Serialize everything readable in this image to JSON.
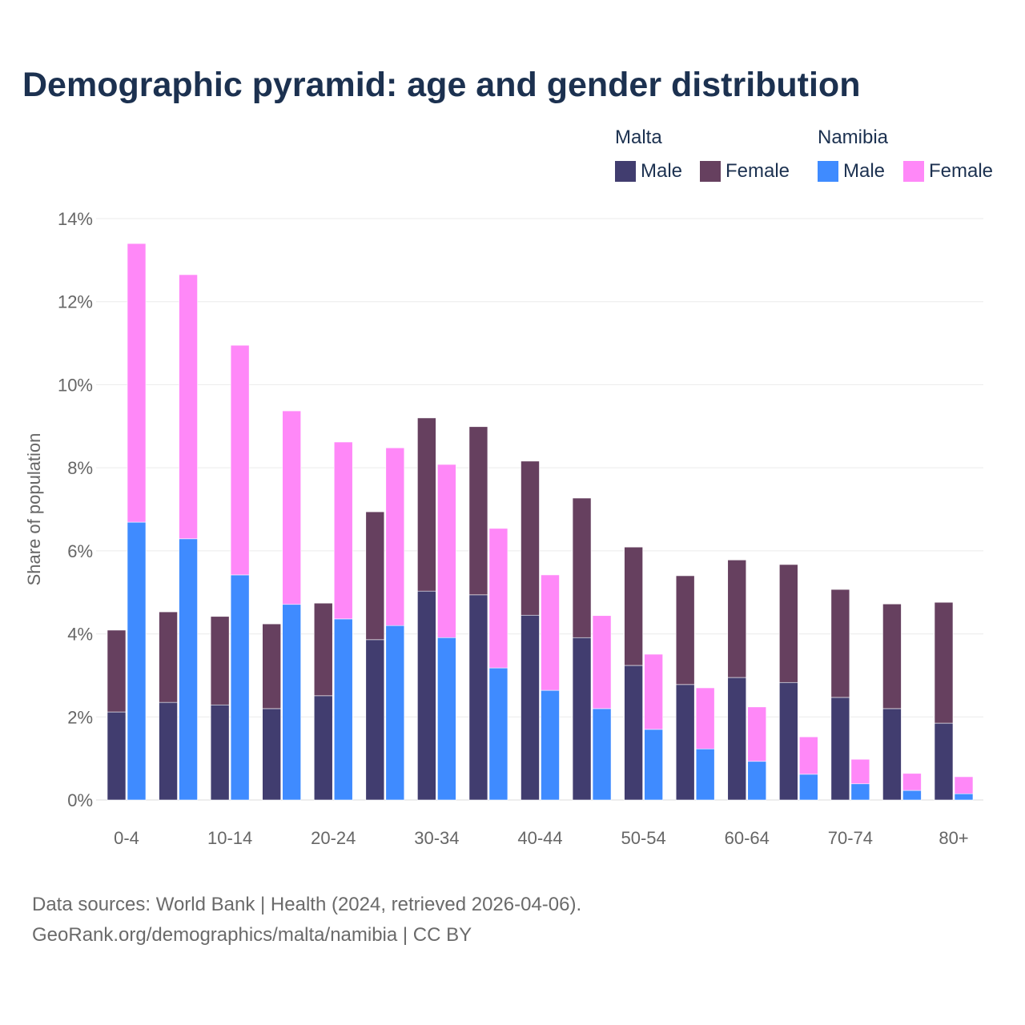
{
  "chart_data": {
    "type": "bar",
    "stacked": true,
    "title": "Demographic pyramid: age and gender distribution",
    "ylabel": "Share of population",
    "ylim": [
      0,
      14
    ],
    "yticks": [
      "0%",
      "2%",
      "4%",
      "6%",
      "8%",
      "10%",
      "12%",
      "14%"
    ],
    "ytick_values": [
      0,
      2,
      4,
      6,
      8,
      10,
      12,
      14
    ],
    "categories": [
      "0-4",
      "5-9",
      "10-14",
      "15-19",
      "20-24",
      "25-29",
      "30-34",
      "35-39",
      "40-44",
      "45-49",
      "50-54",
      "55-59",
      "60-64",
      "65-69",
      "70-74",
      "75-79",
      "80+"
    ],
    "xtick_labels": [
      "0-4",
      "10-14",
      "20-24",
      "30-34",
      "40-44",
      "50-54",
      "60-64",
      "70-74",
      "80+"
    ],
    "grid": true,
    "legend_placement": "top-right",
    "groups": [
      {
        "name": "Malta",
        "series": [
          {
            "name": "Male",
            "color": "#413d6f",
            "values": [
              2.12,
              2.35,
              2.29,
              2.2,
              2.51,
              3.86,
              5.03,
              4.94,
              4.45,
              3.91,
              3.24,
              2.78,
              2.95,
              2.83,
              2.47,
              2.2,
              1.85
            ]
          },
          {
            "name": "Female",
            "color": "#66405f",
            "values": [
              1.97,
              2.18,
              2.13,
              2.04,
              2.23,
              3.08,
              4.17,
              4.05,
              3.71,
              3.36,
              2.85,
              2.62,
              2.83,
              2.84,
              2.6,
              2.52,
              2.91
            ]
          }
        ]
      },
      {
        "name": "Namibia",
        "series": [
          {
            "name": "Male",
            "color": "#3f8bff",
            "values": [
              6.69,
              6.29,
              5.42,
              4.71,
              4.36,
              4.2,
              3.91,
              3.18,
              2.64,
              2.2,
              1.7,
              1.23,
              0.93,
              0.62,
              0.39,
              0.23,
              0.15
            ]
          },
          {
            "name": "Female",
            "color": "#ff88f8",
            "values": [
              6.71,
              6.36,
              5.53,
              4.66,
              4.26,
              4.28,
              4.17,
              3.36,
              2.78,
              2.24,
              1.81,
              1.47,
              1.31,
              0.9,
              0.59,
              0.41,
              0.41
            ]
          }
        ]
      }
    ]
  },
  "footer": {
    "source": "Data sources: World Bank | Health (2024, retrieved 2026-04-06).",
    "credit": "GeoRank.org/demographics/malta/namibia | CC BY"
  }
}
